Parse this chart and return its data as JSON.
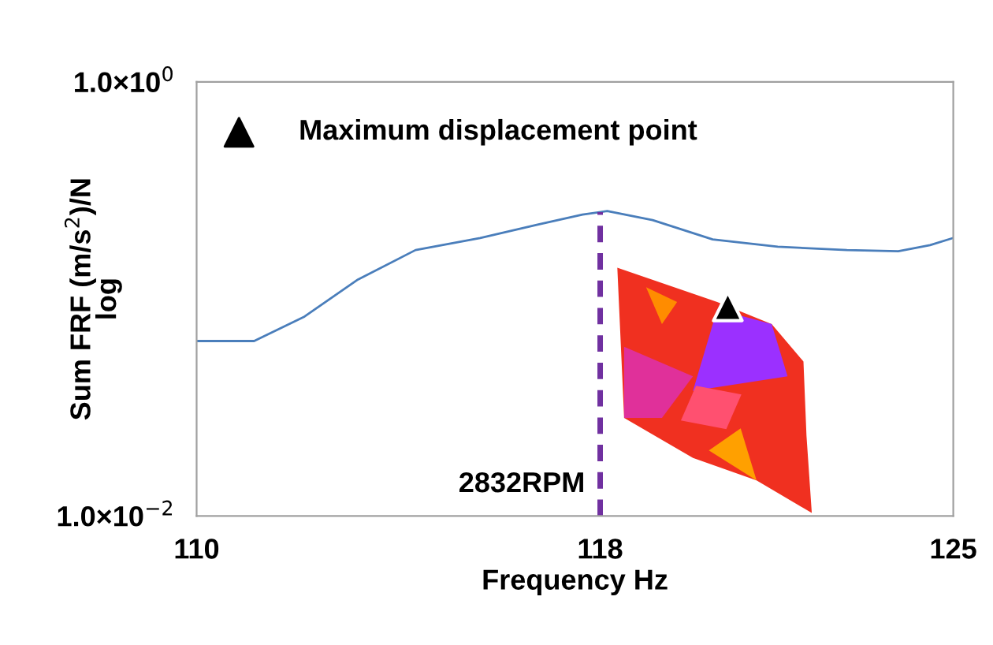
{
  "chart_data": {
    "type": "line",
    "xlabel": "Frequency Hz",
    "ylabel": "Sum FRF (m/s$^{2}$)/N\nlog",
    "x": [
      110,
      111.14,
      112.14,
      113.2,
      114.34,
      115.62,
      116.76,
      117.65,
      118.14,
      119.04,
      120.23,
      121.52,
      122.89,
      123.91,
      124.54,
      125
    ],
    "series": [
      {
        "color": "#4a7ebb",
        "values": [
          0.064,
          0.064,
          0.083,
          0.123,
          0.168,
          0.191,
          0.22,
          0.245,
          0.254,
          0.231,
          0.188,
          0.174,
          0.168,
          0.166,
          0.177,
          0.191
        ]
      }
    ],
    "xlim": [
      110,
      125
    ],
    "xticks": [
      110,
      118,
      125
    ],
    "ylim": [
      0.01,
      1
    ],
    "yticks": [
      {
        "value": 1,
        "label": "1.0×10$^{0}$"
      },
      {
        "value": 0.01,
        "label": "1.0×10$^{−2}$"
      }
    ],
    "log": "y",
    "grid": false,
    "line_style": "solid",
    "ref_lines": [
      {
        "axis": "x",
        "value": 118,
        "label": "2832RPM",
        "color": "#7030a0",
        "line_style": "dashed"
      }
    ],
    "annotations": [
      "Maximum displacement point"
    ]
  }
}
